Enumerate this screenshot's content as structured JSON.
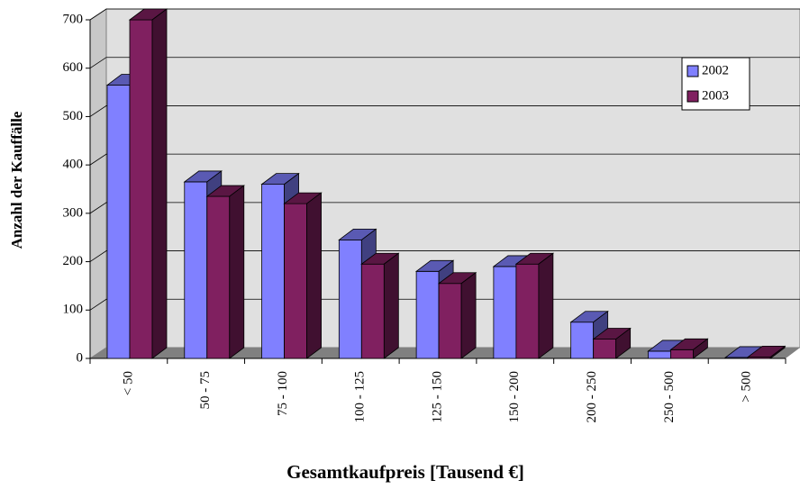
{
  "chart_data": {
    "type": "bar3d",
    "x_label": "Gesamtkaufpreis [Tausend €]",
    "y_label": "Anzahl der Kauffälle",
    "categories": [
      "< 50",
      "50 - 75",
      "75 - 100",
      "100 - 125",
      "125 - 150",
      "150 - 200",
      "200 - 250",
      "250 - 500",
      "> 500"
    ],
    "series": [
      {
        "name": "2002",
        "color": "#8080ff",
        "values": [
          565,
          365,
          360,
          245,
          180,
          190,
          75,
          15,
          2
        ]
      },
      {
        "name": "2003",
        "color": "#802060",
        "values": [
          700,
          335,
          320,
          195,
          155,
          195,
          40,
          18,
          3
        ]
      }
    ],
    "ylim": [
      0,
      700
    ],
    "yticks": [
      0,
      100,
      200,
      300,
      400,
      500,
      600,
      700
    ],
    "grid": true,
    "legend": "upper right"
  }
}
